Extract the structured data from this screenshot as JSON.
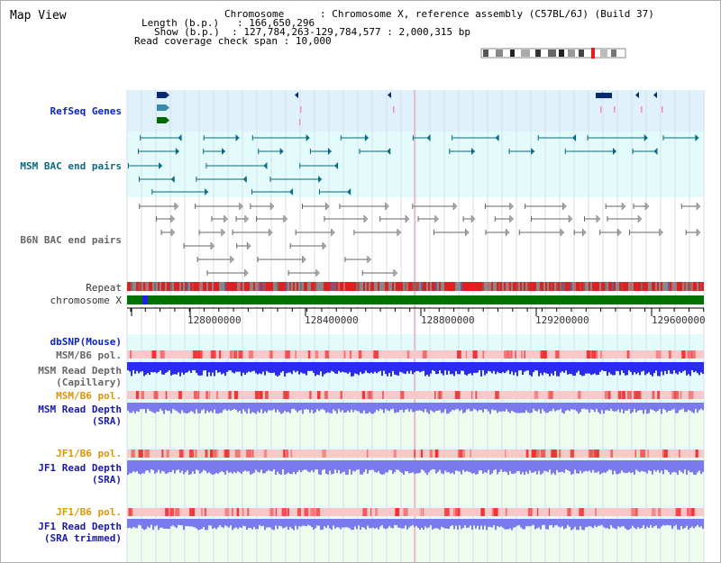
{
  "page": {
    "title": "Map View"
  },
  "info": {
    "chromosome_label": "Chromosome",
    "chromosome_value": "Chromosome X, reference assembly (C57BL/6J) (Build 37)",
    "length_label": "Length (b.p.)",
    "length_value": "166,650,296",
    "show_label": "Show (b.p.)",
    "show_value": "127,784,263-129,784,577 : 2,000,315 bp",
    "coverage_label": "Read coverage check span",
    "coverage_value": "10,000"
  },
  "tracks": {
    "refseq": "RefSeq Genes",
    "msm_bac": "MSM BAC end pairs",
    "b6n_bac": "B6N BAC end pairs",
    "repeat": "Repeat",
    "chromosome": "chromosome X",
    "dbsnp": "dbSNP(Mouse)",
    "msm_b6_pol_1": "MSM/B6 pol.",
    "msm_read_depth_cap_1": "MSM Read Depth",
    "msm_read_depth_cap_2": "(Capillary)",
    "msm_b6_pol_2": "MSM/B6 pol.",
    "msm_read_depth_sra_1": "MSM Read Depth",
    "msm_read_depth_sra_2": "(SRA)",
    "jf1_b6_pol_1": "JF1/B6 pol.",
    "jf1_read_depth_sra_1": "JF1 Read Depth",
    "jf1_read_depth_sra_2": "(SRA)",
    "jf1_b6_pol_2": "JF1/B6 pol.",
    "jf1_read_depth_trim_1": "JF1 Read Depth",
    "jf1_read_depth_trim_2": "(SRA trimmed)"
  },
  "ruler": {
    "ticks": [
      "128000000",
      "128400000",
      "128800000",
      "129200000",
      "129600000"
    ]
  },
  "colors": {
    "refseq_bg": "#dff1fb",
    "bac_bg": "#e3fbfb",
    "b6n_bg": "#ffffff",
    "depth_bg": "#eefcee",
    "pol_light": "#f9c8c8",
    "pol_dark": "#ee3030",
    "capillary_depth": "#2a2af0",
    "sra_depth": "#7a7aee",
    "chromosome_bar": "#007000",
    "teal": "#0a6a82"
  }
}
